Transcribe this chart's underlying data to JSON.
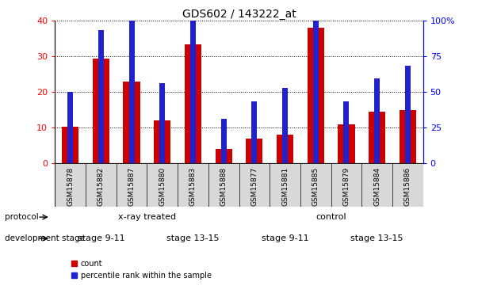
{
  "title": "GDS602 / 143222_at",
  "samples": [
    "GSM15878",
    "GSM15882",
    "GSM15887",
    "GSM15880",
    "GSM15883",
    "GSM15888",
    "GSM15877",
    "GSM15881",
    "GSM15885",
    "GSM15879",
    "GSM15884",
    "GSM15886"
  ],
  "count_values": [
    10.3,
    29.5,
    23.0,
    12.0,
    33.5,
    4.0,
    7.0,
    8.0,
    38.0,
    11.0,
    14.5,
    15.0
  ],
  "percentile_values": [
    20.0,
    37.5,
    40.0,
    22.5,
    40.0,
    12.5,
    17.5,
    21.25,
    47.5,
    17.5,
    23.75,
    27.5
  ],
  "ylim_left": [
    0,
    40
  ],
  "ylim_right": [
    0,
    100
  ],
  "yticks_left": [
    0,
    10,
    20,
    30,
    40
  ],
  "yticks_right": [
    0,
    25,
    50,
    75,
    100
  ],
  "ytick_right_labels": [
    "0",
    "25",
    "50",
    "75",
    "100%"
  ],
  "bar_color_red": "#cc0000",
  "bar_color_blue": "#2222cc",
  "bar_width": 0.55,
  "blue_bar_width": 0.18,
  "protocol_xray_color": "#ccffcc",
  "protocol_control_color": "#44dd44",
  "stage_911_color": "#ee66ee",
  "stage_1315_color": "#bb22bb",
  "protocol_xray_label": "x-ray treated",
  "protocol_control_label": "control",
  "stage_911_label": "stage 9-11",
  "stage_1315_label": "stage 13-15",
  "protocol_label": "protocol",
  "stage_label": "development stage",
  "legend_count": "count",
  "legend_percentile": "percentile rank within the sample"
}
